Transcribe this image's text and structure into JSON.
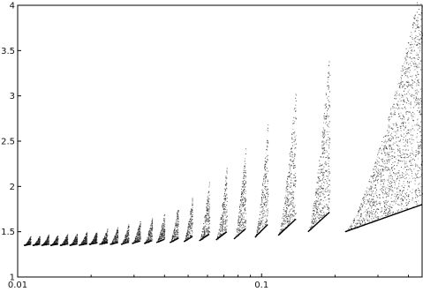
{
  "chart_data": {
    "type": "scatter",
    "x_scale": "log",
    "xlim": [
      0.01,
      0.455
    ],
    "ylim": [
      1,
      4
    ],
    "grid": false,
    "legend": "none",
    "x_ticks": [
      {
        "value": 0.01,
        "label": "0.01"
      },
      {
        "value": 0.1,
        "label": "0.1"
      }
    ],
    "y_ticks": [
      {
        "value": 1,
        "label": "1"
      },
      {
        "value": 1.5,
        "label": "1.5"
      },
      {
        "value": 2,
        "label": "2"
      },
      {
        "value": 2.5,
        "label": "2.5"
      },
      {
        "value": 3,
        "label": "3"
      },
      {
        "value": 3.5,
        "label": "3.5"
      },
      {
        "value": 4,
        "label": "4"
      }
    ],
    "branches": [
      {
        "x_start": 0.0106,
        "x_end": 0.0113,
        "y_base": 1.35,
        "y_peak": 1.45
      },
      {
        "x_start": 0.0115,
        "x_end": 0.0123,
        "y_base": 1.35,
        "y_peak": 1.45
      },
      {
        "x_start": 0.0125,
        "x_end": 0.0134,
        "y_base": 1.35,
        "y_peak": 1.46
      },
      {
        "x_start": 0.0136,
        "x_end": 0.0146,
        "y_base": 1.35,
        "y_peak": 1.46
      },
      {
        "x_start": 0.0149,
        "x_end": 0.016,
        "y_base": 1.35,
        "y_peak": 1.47
      },
      {
        "x_start": 0.0163,
        "x_end": 0.0175,
        "y_base": 1.35,
        "y_peak": 1.48
      },
      {
        "x_start": 0.0178,
        "x_end": 0.0192,
        "y_base": 1.35,
        "y_peak": 1.49
      },
      {
        "x_start": 0.0196,
        "x_end": 0.0211,
        "y_base": 1.36,
        "y_peak": 1.5
      },
      {
        "x_start": 0.0216,
        "x_end": 0.0233,
        "y_base": 1.36,
        "y_peak": 1.52
      },
      {
        "x_start": 0.0239,
        "x_end": 0.0257,
        "y_base": 1.36,
        "y_peak": 1.54
      },
      {
        "x_start": 0.0265,
        "x_end": 0.0285,
        "y_base": 1.36,
        "y_peak": 1.57
      },
      {
        "x_start": 0.0294,
        "x_end": 0.0318,
        "y_base": 1.37,
        "y_peak": 1.6
      },
      {
        "x_start": 0.033,
        "x_end": 0.0356,
        "y_base": 1.37,
        "y_peak": 1.64
      },
      {
        "x_start": 0.037,
        "x_end": 0.04,
        "y_base": 1.38,
        "y_peak": 1.69
      },
      {
        "x_start": 0.042,
        "x_end": 0.0455,
        "y_base": 1.38,
        "y_peak": 1.76
      },
      {
        "x_start": 0.048,
        "x_end": 0.052,
        "y_base": 1.39,
        "y_peak": 1.86
      },
      {
        "x_start": 0.0555,
        "x_end": 0.061,
        "y_base": 1.4,
        "y_peak": 2.0
      },
      {
        "x_start": 0.065,
        "x_end": 0.072,
        "y_base": 1.41,
        "y_peak": 2.15
      },
      {
        "x_start": 0.077,
        "x_end": 0.086,
        "y_base": 1.42,
        "y_peak": 2.35
      },
      {
        "x_start": 0.094,
        "x_end": 0.106,
        "y_base": 1.44,
        "y_peak": 2.6
      },
      {
        "x_start": 0.117,
        "x_end": 0.138,
        "y_base": 1.46,
        "y_peak": 2.95
      },
      {
        "x_start": 0.155,
        "x_end": 0.19,
        "y_base": 1.5,
        "y_peak": 3.3
      },
      {
        "x_start": 0.22,
        "x_end": 0.455,
        "y_base": 1.5,
        "y_peak": 4.0
      }
    ]
  }
}
